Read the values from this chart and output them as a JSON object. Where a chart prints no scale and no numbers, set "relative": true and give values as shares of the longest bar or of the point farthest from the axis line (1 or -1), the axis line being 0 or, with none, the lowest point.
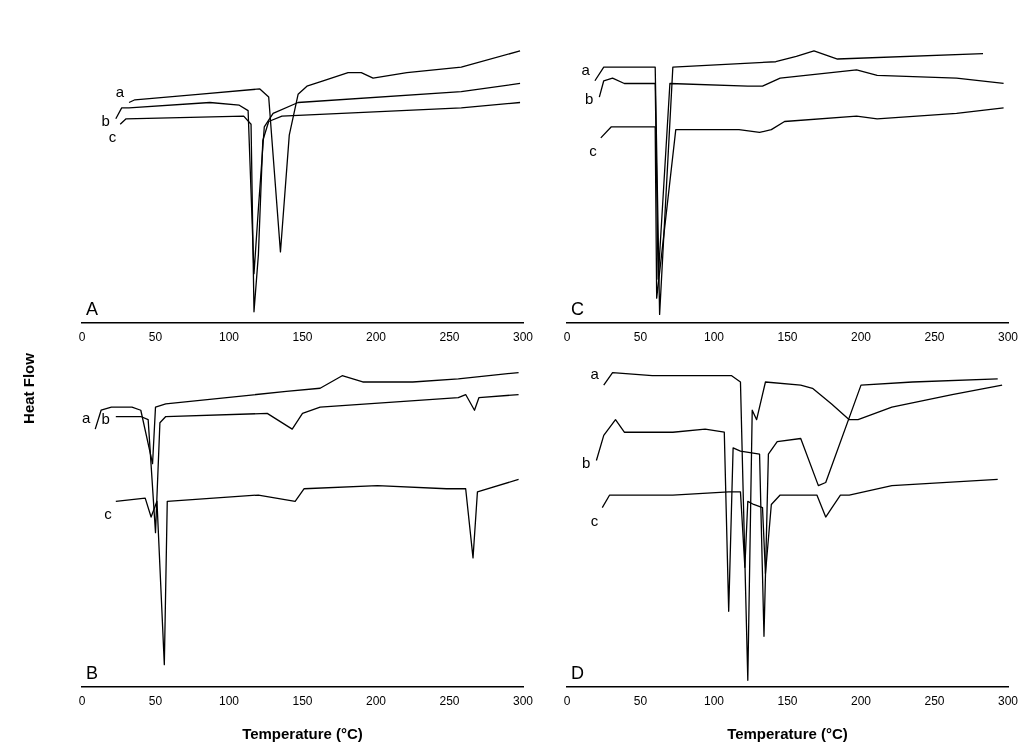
{
  "chart_data": [
    {
      "type": "line",
      "relative": true,
      "ylabel": "Heat Flow",
      "annotations": [
        "A"
      ],
      "xlim": [
        0,
        300
      ],
      "xticks": [
        0,
        50,
        100,
        150,
        200,
        250,
        300
      ],
      "grid": false,
      "legend": false,
      "marker": "none",
      "line_style": "solid",
      "tick_labels": "x",
      "series": [
        {
          "name": "a",
          "color": "#000000",
          "x": [
            32,
            36,
            79,
            121,
            127,
            135,
            141,
            147,
            153,
            164,
            181,
            190,
            198,
            221,
            258,
            298
          ],
          "values": [
            0.81,
            0.82,
            0.84,
            0.86,
            0.83,
            0.26,
            0.69,
            0.84,
            0.87,
            0.89,
            0.92,
            0.92,
            0.9,
            0.92,
            0.94,
            1.0
          ]
        },
        {
          "name": "b",
          "color": "#000000",
          "x": [
            23,
            27,
            32,
            87,
            107,
            113,
            117,
            120,
            124,
            130,
            147,
            258,
            298
          ],
          "values": [
            0.75,
            0.79,
            0.79,
            0.81,
            0.8,
            0.78,
            0.18,
            0.42,
            0.72,
            0.77,
            0.81,
            0.85,
            0.88
          ]
        },
        {
          "name": "c",
          "color": "#000000",
          "x": [
            26,
            30,
            110,
            115,
            117,
            120,
            123,
            127,
            136,
            258,
            298
          ],
          "values": [
            0.73,
            0.75,
            0.76,
            0.73,
            0.04,
            0.25,
            0.67,
            0.74,
            0.76,
            0.79,
            0.81
          ]
        }
      ]
    },
    {
      "type": "line",
      "relative": true,
      "xlabel": "Temperature (°C)",
      "annotations": [
        "B"
      ],
      "xlim": [
        0,
        300
      ],
      "xticks": [
        0,
        50,
        100,
        150,
        200,
        250,
        300
      ],
      "grid": false,
      "legend": false,
      "marker": "none",
      "line_style": "solid",
      "tick_labels": "x",
      "series": [
        {
          "name": "a",
          "color": "#000000",
          "x": [
            9,
            13,
            20,
            34,
            40,
            48,
            50,
            57,
            139,
            162,
            177,
            191,
            225,
            256,
            297
          ],
          "values": [
            0.82,
            0.88,
            0.89,
            0.89,
            0.88,
            0.71,
            0.89,
            0.9,
            0.94,
            0.95,
            0.99,
            0.97,
            0.97,
            0.98,
            1.0
          ]
        },
        {
          "name": "b",
          "color": "#000000",
          "x": [
            23,
            40,
            45,
            50,
            53,
            57,
            126,
            143,
            150,
            162,
            256,
            261,
            267,
            270,
            297
          ],
          "values": [
            0.86,
            0.86,
            0.85,
            0.49,
            0.84,
            0.86,
            0.87,
            0.82,
            0.87,
            0.89,
            0.92,
            0.93,
            0.88,
            0.92,
            0.93
          ]
        },
        {
          "name": "c",
          "color": "#000000",
          "x": [
            23,
            43,
            47,
            51,
            56,
            58,
            120,
            145,
            151,
            201,
            248,
            261,
            266,
            269,
            297
          ],
          "values": [
            0.59,
            0.6,
            0.54,
            0.59,
            0.07,
            0.59,
            0.61,
            0.59,
            0.63,
            0.64,
            0.63,
            0.63,
            0.41,
            0.62,
            0.66
          ]
        }
      ]
    },
    {
      "type": "line",
      "relative": true,
      "annotations": [
        "C"
      ],
      "xlim": [
        0,
        300
      ],
      "xticks": [
        0,
        50,
        100,
        150,
        200,
        250,
        300
      ],
      "grid": false,
      "legend": false,
      "marker": "none",
      "line_style": "solid",
      "tick_labels": "x",
      "series": [
        {
          "name": "a",
          "color": "#000000",
          "x": [
            19,
            25,
            60,
            63,
            72,
            142,
            156,
            168,
            184,
            283
          ],
          "values": [
            0.89,
            0.94,
            0.94,
            0.03,
            0.94,
            0.96,
            0.98,
            1.0,
            0.97,
            0.99
          ]
        },
        {
          "name": "b",
          "color": "#000000",
          "x": [
            22,
            25,
            31,
            39,
            60,
            62,
            70,
            123,
            133,
            145,
            197,
            211,
            265,
            297
          ],
          "values": [
            0.83,
            0.89,
            0.9,
            0.88,
            0.88,
            0.16,
            0.88,
            0.87,
            0.87,
            0.9,
            0.93,
            0.91,
            0.9,
            0.88
          ]
        },
        {
          "name": "c",
          "color": "#000000",
          "x": [
            23,
            30,
            60,
            61,
            74,
            117,
            131,
            139,
            148,
            197,
            211,
            265,
            297
          ],
          "values": [
            0.68,
            0.72,
            0.72,
            0.09,
            0.71,
            0.71,
            0.7,
            0.71,
            0.74,
            0.76,
            0.75,
            0.77,
            0.79
          ]
        }
      ]
    },
    {
      "type": "line",
      "relative": true,
      "xlabel": "Temperature (°C)",
      "annotations": [
        "D"
      ],
      "xlim": [
        0,
        300
      ],
      "xticks": [
        0,
        50,
        100,
        150,
        200,
        250,
        300
      ],
      "grid": false,
      "legend": false,
      "marker": "none",
      "line_style": "solid",
      "tick_labels": "x",
      "series": [
        {
          "name": "a",
          "color": "#000000",
          "x": [
            25,
            31,
            58,
            112,
            118,
            123,
            126,
            129,
            135,
            159,
            167,
            180,
            192,
            198,
            221,
            262,
            296
          ],
          "values": [
            0.96,
            1.0,
            0.99,
            0.99,
            0.97,
            0.02,
            0.88,
            0.85,
            0.97,
            0.96,
            0.95,
            0.9,
            0.85,
            0.85,
            0.89,
            0.93,
            0.96
          ]
        },
        {
          "name": "b",
          "color": "#000000",
          "x": [
            20,
            25,
            33,
            39,
            72,
            94,
            107,
            110,
            113,
            118,
            131,
            134,
            137,
            143,
            159,
            171,
            176,
            200,
            235,
            293
          ],
          "values": [
            0.72,
            0.8,
            0.85,
            0.81,
            0.81,
            0.82,
            0.81,
            0.24,
            0.76,
            0.75,
            0.74,
            0.16,
            0.74,
            0.78,
            0.79,
            0.64,
            0.65,
            0.96,
            0.97,
            0.98
          ]
        },
        {
          "name": "c",
          "color": "#000000",
          "x": [
            24,
            29,
            72,
            110,
            117,
            118,
            121,
            123,
            127,
            133,
            135,
            139,
            145,
            164,
            170,
            176,
            186,
            192,
            221,
            293
          ],
          "values": [
            0.57,
            0.61,
            0.61,
            0.62,
            0.62,
            0.62,
            0.38,
            0.59,
            0.58,
            0.57,
            0.36,
            0.58,
            0.61,
            0.61,
            0.61,
            0.54,
            0.61,
            0.61,
            0.64,
            0.66
          ]
        }
      ]
    }
  ]
}
